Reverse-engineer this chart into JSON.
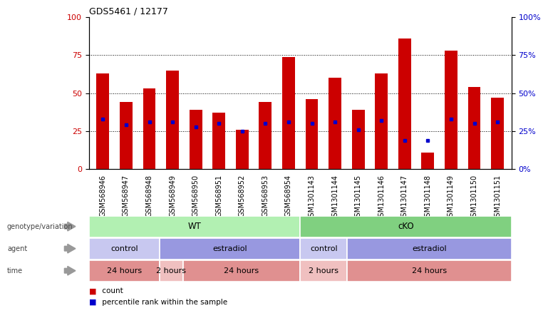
{
  "title": "GDS5461 / 12177",
  "samples": [
    "GSM568946",
    "GSM568947",
    "GSM568948",
    "GSM568949",
    "GSM568950",
    "GSM568951",
    "GSM568952",
    "GSM568953",
    "GSM568954",
    "GSM1301143",
    "GSM1301144",
    "GSM1301145",
    "GSM1301146",
    "GSM1301147",
    "GSM1301148",
    "GSM1301149",
    "GSM1301150",
    "GSM1301151"
  ],
  "red_bars": [
    63,
    44,
    53,
    65,
    39,
    37,
    26,
    44,
    74,
    46,
    60,
    39,
    63,
    86,
    11,
    78,
    54,
    47
  ],
  "blue_markers": [
    33,
    29,
    31,
    31,
    28,
    30,
    25,
    30,
    31,
    30,
    31,
    26,
    32,
    19,
    19,
    33,
    30,
    31
  ],
  "genotype_groups": [
    {
      "label": "WT",
      "start": 0,
      "end": 9,
      "color": "#b2f0b2"
    },
    {
      "label": "cKO",
      "start": 9,
      "end": 18,
      "color": "#80d080"
    }
  ],
  "agent_groups": [
    {
      "label": "control",
      "start": 0,
      "end": 3,
      "color": "#c8c8f0"
    },
    {
      "label": "estradiol",
      "start": 3,
      "end": 9,
      "color": "#9898e0"
    },
    {
      "label": "control",
      "start": 9,
      "end": 11,
      "color": "#c8c8f0"
    },
    {
      "label": "estradiol",
      "start": 11,
      "end": 18,
      "color": "#9898e0"
    }
  ],
  "time_groups": [
    {
      "label": "24 hours",
      "start": 0,
      "end": 3,
      "color": "#e09090"
    },
    {
      "label": "2 hours",
      "start": 3,
      "end": 4,
      "color": "#f0c0c0"
    },
    {
      "label": "24 hours",
      "start": 4,
      "end": 9,
      "color": "#e09090"
    },
    {
      "label": "2 hours",
      "start": 9,
      "end": 11,
      "color": "#f0c0c0"
    },
    {
      "label": "24 hours",
      "start": 11,
      "end": 18,
      "color": "#e09090"
    }
  ],
  "ylim": [
    0,
    100
  ],
  "yticks": [
    0,
    25,
    50,
    75,
    100
  ],
  "grid_values": [
    25,
    50,
    75
  ],
  "bar_color": "#cc0000",
  "marker_color": "#0000cc",
  "background_color": "#ffffff",
  "tick_label_color_left": "#cc0000",
  "tick_label_color_right": "#0000cc",
  "row_labels": [
    "genotype/variation",
    "agent",
    "time"
  ]
}
